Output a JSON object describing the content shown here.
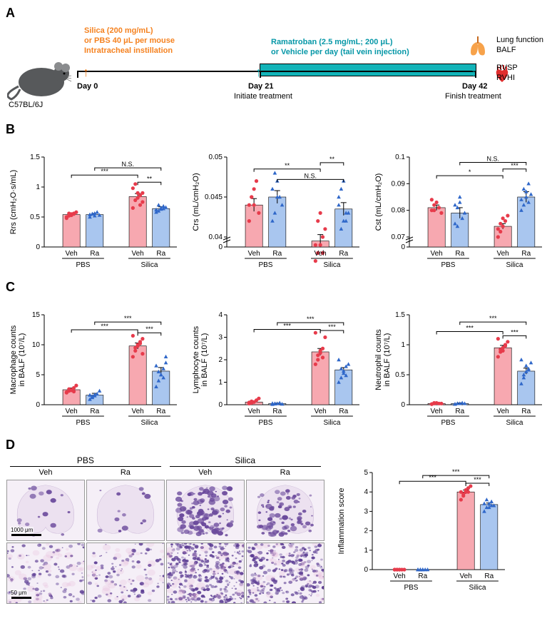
{
  "colors": {
    "veh_fill": "#f7a8b0",
    "veh_stroke": "#e73b4b",
    "ra_fill": "#a9c6ef",
    "ra_stroke": "#2f67c9",
    "teal": "#12b3b8",
    "orange": "#f58220",
    "lung": "#f7a24a",
    "heart": "#e02e2e"
  },
  "panelA": {
    "mouse_label": "C57BL/6J",
    "silica_txt1": "Silica (200 mg/mL)",
    "silica_txt2": "or PBS 40 μL per mouse",
    "silica_txt3": "Intratracheal instillation",
    "drug_txt1": "Ramatroban (2.5 mg/mL; 200 μL)",
    "drug_txt2": "or Vehicle per day  (tail vein injection)",
    "day0": "Day 0",
    "day21": "Day 21",
    "day21_sub": "Initiate treatment",
    "day42": "Day 42",
    "day42_sub": "Finish treatment",
    "endpoint1": "Lung function",
    "endpoint2": "BALF",
    "endpoint3": "RVSP",
    "endpoint4": "RVHI"
  },
  "groups": [
    "Veh",
    "Ra",
    "Veh",
    "Ra"
  ],
  "group_blocks": [
    "PBS",
    "Silica"
  ],
  "panelB": [
    {
      "ylabel": "Rrs (cmH₂O·s/mL)",
      "ylim": [
        0,
        1.5
      ],
      "yticks": [
        0,
        0.5,
        1.0,
        1.5
      ],
      "means": [
        0.54,
        0.54,
        0.84,
        0.64
      ],
      "sems": [
        0.02,
        0.02,
        0.05,
        0.03
      ],
      "points": [
        [
          0.5,
          0.52,
          0.55,
          0.56,
          0.58,
          0.48,
          0.56,
          0.53,
          0.55
        ],
        [
          0.5,
          0.55,
          0.52,
          0.58,
          0.53,
          0.54,
          0.55,
          0.56
        ],
        [
          0.65,
          0.78,
          0.82,
          0.86,
          0.9,
          0.98,
          1.05,
          0.9,
          0.7,
          0.75
        ],
        [
          0.58,
          0.6,
          0.65,
          0.68,
          0.66,
          0.62,
          0.7,
          0.63,
          0.64
        ]
      ],
      "sig": [
        {
          "from": 0,
          "to": 2,
          "label": "***",
          "y": 1.2
        },
        {
          "from": 1,
          "to": 3,
          "label": "N.S.",
          "y": 1.32
        },
        {
          "from": 2,
          "to": 3,
          "label": "**",
          "y": 1.08
        }
      ]
    },
    {
      "ylabel": "Crs (mL/cmH₂O)",
      "ylim": [
        0.0,
        0.05
      ],
      "yticks": [
        0.0,
        0.04,
        0.045,
        0.05
      ],
      "broken_axis": true,
      "means": [
        0.044,
        0.045,
        0.0395,
        0.0435
      ],
      "sems": [
        0.0008,
        0.0008,
        0.0008,
        0.0008
      ],
      "points": [
        [
          0.042,
          0.045,
          0.046,
          0.047,
          0.043,
          0.044,
          0.045,
          0.044
        ],
        [
          0.042,
          0.048,
          0.047,
          0.045,
          0.044,
          0.046,
          0.043,
          0.045
        ],
        [
          0.037,
          0.038,
          0.039,
          0.04,
          0.041,
          0.039,
          0.042,
          0.043,
          0.038
        ],
        [
          0.045,
          0.046,
          0.047,
          0.042,
          0.043,
          0.044,
          0.041,
          0.042,
          0.043
        ]
      ],
      "sig": [
        {
          "from": 0,
          "to": 2,
          "label": "**",
          "y": 0.0485
        },
        {
          "from": 1,
          "to": 3,
          "label": "N.S.",
          "y": 0.0472
        },
        {
          "from": 2,
          "to": 3,
          "label": "**",
          "y": 0.0493
        }
      ]
    },
    {
      "ylabel": "Cst (mL/cmH₂O)",
      "ylim": [
        0.0,
        0.1
      ],
      "yticks": [
        0.0,
        0.07,
        0.08,
        0.09,
        0.1
      ],
      "broken_axis": true,
      "means": [
        0.081,
        0.079,
        0.074,
        0.085
      ],
      "sems": [
        0.001,
        0.002,
        0.001,
        0.002
      ],
      "points": [
        [
          0.08,
          0.082,
          0.083,
          0.081,
          0.079,
          0.084,
          0.08
        ],
        [
          0.075,
          0.081,
          0.083,
          0.077,
          0.079,
          0.082,
          0.074,
          0.085
        ],
        [
          0.07,
          0.072,
          0.074,
          0.076,
          0.078,
          0.073,
          0.075,
          0.077
        ],
        [
          0.08,
          0.082,
          0.087,
          0.09,
          0.086,
          0.084,
          0.088,
          0.085,
          0.083
        ]
      ],
      "sig": [
        {
          "from": 0,
          "to": 2,
          "label": "*",
          "y": 0.093
        },
        {
          "from": 1,
          "to": 3,
          "label": "N.S.",
          "y": 0.098
        },
        {
          "from": 2,
          "to": 3,
          "label": "***",
          "y": 0.0955
        }
      ]
    }
  ],
  "panelC": [
    {
      "ylabel": "Macrophage counts\nin BALF (10⁷/L)",
      "ylim": [
        0,
        15
      ],
      "yticks": [
        0,
        5,
        10,
        15
      ],
      "means": [
        2.5,
        1.6,
        9.8,
        5.6
      ],
      "sems": [
        0.3,
        0.3,
        0.5,
        0.6
      ],
      "points": [
        [
          2.0,
          2.3,
          2.5,
          2.8,
          3.2,
          2.1,
          2.6,
          2.4,
          2.2
        ],
        [
          0.9,
          1.2,
          1.5,
          1.8,
          2.3,
          1.6,
          1.4,
          1.7
        ],
        [
          8.0,
          9.0,
          10.0,
          10.5,
          11.0,
          11.5,
          9.5,
          9.8,
          10.2,
          8.5
        ],
        [
          3.0,
          4.0,
          5.0,
          6.0,
          7.0,
          6.5,
          5.5,
          5.0,
          4.5,
          8.0
        ]
      ],
      "sig": [
        {
          "from": 0,
          "to": 2,
          "label": "***",
          "y": 12.5
        },
        {
          "from": 1,
          "to": 3,
          "label": "***",
          "y": 13.8
        },
        {
          "from": 2,
          "to": 3,
          "label": "***",
          "y": 12.0
        }
      ]
    },
    {
      "ylabel": "Lymphocyte counts\nin BALF (10⁷/L)",
      "ylim": [
        0,
        4
      ],
      "yticks": [
        0,
        1,
        2,
        3,
        4
      ],
      "means": [
        0.12,
        0.05,
        2.35,
        1.55
      ],
      "sems": [
        0.03,
        0.02,
        0.15,
        0.1
      ],
      "points": [
        [
          0.05,
          0.08,
          0.12,
          0.2,
          0.28,
          0.1,
          0.15
        ],
        [
          0.02,
          0.04,
          0.05,
          0.08,
          0.03,
          0.06,
          0.05
        ],
        [
          1.8,
          2.0,
          2.3,
          2.5,
          3.0,
          3.2,
          2.2,
          2.4,
          2.1
        ],
        [
          1.0,
          1.2,
          1.5,
          1.7,
          1.8,
          2.0,
          1.6,
          1.4,
          1.3
        ]
      ],
      "sig": [
        {
          "from": 0,
          "to": 2,
          "label": "***",
          "y": 3.35
        },
        {
          "from": 1,
          "to": 3,
          "label": "***",
          "y": 3.65
        },
        {
          "from": 2,
          "to": 3,
          "label": "***",
          "y": 3.3
        }
      ]
    },
    {
      "ylabel": "Neutrophil counts\nin BALF (10⁷/L)",
      "ylim": [
        0.0,
        1.5
      ],
      "yticks": [
        0.0,
        0.5,
        1.0,
        1.5
      ],
      "means": [
        0.02,
        0.02,
        0.95,
        0.56
      ],
      "sems": [
        0.01,
        0.01,
        0.04,
        0.05
      ],
      "points": [
        [
          0.01,
          0.02,
          0.03,
          0.02,
          0.02,
          0.01,
          0.03
        ],
        [
          0.01,
          0.02,
          0.02,
          0.03,
          0.02,
          0.01,
          0.02
        ],
        [
          0.8,
          0.88,
          0.95,
          1.0,
          1.05,
          1.1,
          0.92,
          0.9,
          0.98
        ],
        [
          0.35,
          0.45,
          0.55,
          0.6,
          0.7,
          0.75,
          0.5,
          0.65,
          0.58
        ]
      ],
      "sig": [
        {
          "from": 0,
          "to": 2,
          "label": "***",
          "y": 1.22
        },
        {
          "from": 1,
          "to": 3,
          "label": "***",
          "y": 1.38
        },
        {
          "from": 2,
          "to": 3,
          "label": "***",
          "y": 1.15
        }
      ]
    }
  ],
  "panelD": {
    "headers": [
      "PBS",
      "Silica"
    ],
    "sub": [
      "Veh",
      "Ra",
      "Veh",
      "Ra"
    ],
    "scale_top": "1000 μm",
    "scale_bottom": "50 μm",
    "densities": [
      0.06,
      0.05,
      0.45,
      0.32
    ],
    "chart": {
      "ylabel": "Inflammation score",
      "ylim": [
        0,
        5
      ],
      "yticks": [
        0,
        1,
        2,
        3,
        4,
        5
      ],
      "means": [
        0.0,
        0.0,
        4.0,
        3.35
      ],
      "sems": [
        0.0,
        0.0,
        0.1,
        0.08
      ],
      "points": [
        [
          0,
          0,
          0,
          0,
          0,
          0,
          0,
          0
        ],
        [
          0,
          0,
          0,
          0,
          0,
          0,
          0,
          0
        ],
        [
          3.6,
          3.8,
          4.0,
          4.2,
          4.3,
          4.0,
          3.9,
          4.1,
          4.0
        ],
        [
          3.0,
          3.2,
          3.4,
          3.5,
          3.3,
          3.4,
          3.6,
          3.2,
          3.3
        ]
      ],
      "sig": [
        {
          "from": 0,
          "to": 2,
          "label": "***",
          "y": 4.55
        },
        {
          "from": 1,
          "to": 3,
          "label": "***",
          "y": 4.85
        },
        {
          "from": 2,
          "to": 3,
          "label": "***",
          "y": 4.45
        }
      ]
    }
  }
}
